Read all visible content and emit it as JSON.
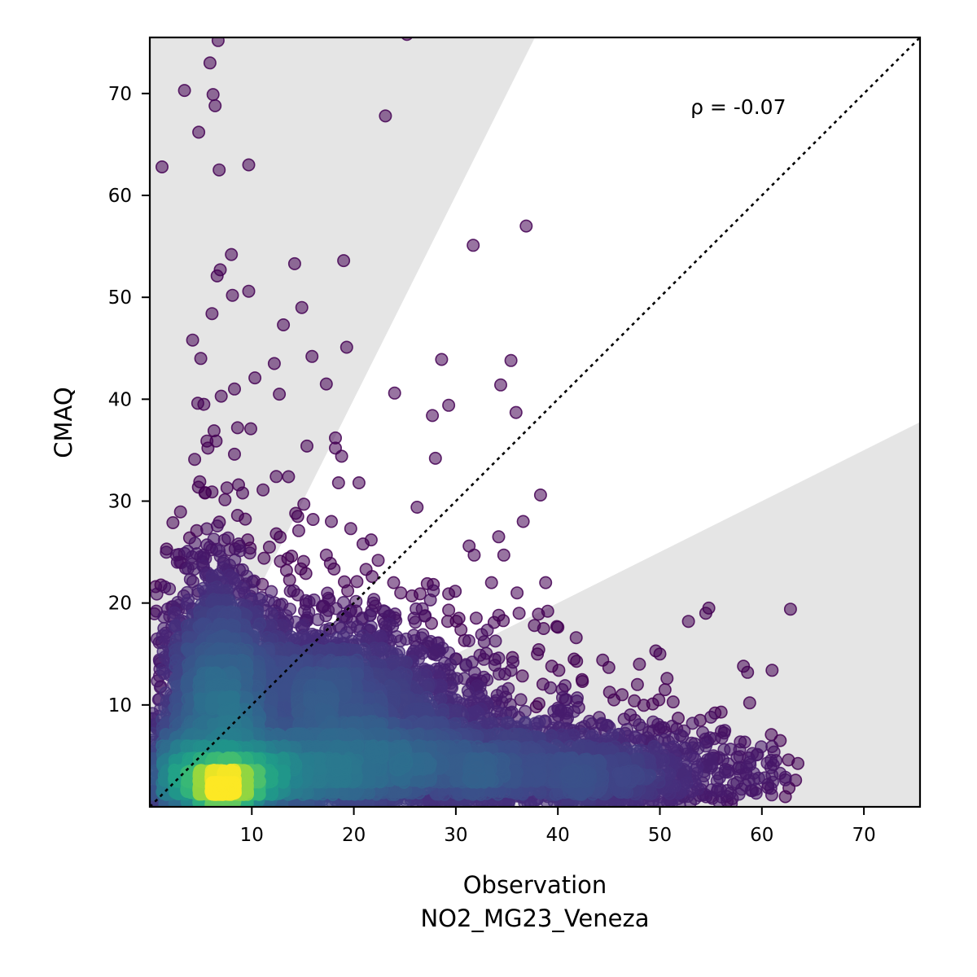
{
  "chart_data": {
    "type": "scatter",
    "xlabel": "Observation",
    "xlabel_sub": "NO2_MG23_Veneza",
    "ylabel": "CMAQ",
    "xlim": [
      0,
      75.5
    ],
    "ylim": [
      0,
      75.5
    ],
    "xticks": [
      10,
      20,
      30,
      40,
      50,
      60,
      70
    ],
    "yticks": [
      10,
      20,
      30,
      40,
      50,
      60,
      70
    ],
    "annotation": "ρ = -0.07",
    "annotation_pos": [
      53,
      68
    ],
    "identity_line": true,
    "shaded_band_factor": 2,
    "colormap": "viridis",
    "point_color": "#440154",
    "shade_color": "#e5e5e5",
    "outlier_points": [
      [
        1.2,
        62.8
      ],
      [
        3.4,
        70.3
      ],
      [
        4.8,
        66.2
      ],
      [
        5.9,
        73.0
      ],
      [
        6.2,
        69.9
      ],
      [
        6.4,
        68.8
      ],
      [
        6.7,
        75.2
      ],
      [
        6.8,
        62.5
      ],
      [
        9.7,
        63.0
      ],
      [
        23.1,
        67.8
      ],
      [
        25.2,
        75.8
      ],
      [
        8.0,
        54.2
      ],
      [
        6.9,
        52.7
      ],
      [
        6.6,
        52.1
      ],
      [
        9.7,
        50.6
      ],
      [
        8.1,
        50.2
      ],
      [
        6.1,
        48.4
      ],
      [
        4.2,
        45.8
      ],
      [
        5.0,
        44.0
      ],
      [
        14.2,
        53.3
      ],
      [
        14.9,
        49.0
      ],
      [
        13.1,
        47.3
      ],
      [
        19.0,
        53.6
      ],
      [
        19.3,
        45.1
      ],
      [
        15.9,
        44.2
      ],
      [
        12.2,
        43.5
      ],
      [
        10.3,
        42.1
      ],
      [
        17.3,
        41.5
      ],
      [
        12.7,
        40.5
      ],
      [
        7.0,
        40.3
      ],
      [
        8.3,
        41.0
      ],
      [
        4.7,
        39.6
      ],
      [
        5.3,
        39.5
      ],
      [
        9.9,
        37.1
      ],
      [
        8.6,
        37.2
      ],
      [
        6.3,
        36.9
      ],
      [
        5.6,
        35.9
      ],
      [
        6.5,
        35.9
      ],
      [
        5.7,
        35.2
      ],
      [
        8.3,
        34.6
      ],
      [
        4.4,
        34.1
      ],
      [
        15.4,
        35.4
      ],
      [
        18.2,
        36.2
      ],
      [
        18.2,
        35.2
      ],
      [
        18.8,
        34.4
      ],
      [
        14.5,
        28.5
      ],
      [
        13.6,
        32.4
      ],
      [
        4.9,
        31.9
      ],
      [
        8.7,
        31.6
      ],
      [
        9.1,
        30.8
      ],
      [
        11.1,
        31.1
      ],
      [
        5.4,
        30.8
      ],
      [
        6.1,
        30.9
      ],
      [
        18.5,
        31.8
      ],
      [
        20.5,
        31.8
      ],
      [
        15.1,
        29.7
      ],
      [
        14.3,
        28.8
      ],
      [
        16.0,
        28.2
      ],
      [
        17.8,
        28.0
      ],
      [
        19.7,
        27.3
      ],
      [
        12.4,
        26.8
      ],
      [
        14.6,
        27.1
      ],
      [
        13.9,
        24.6
      ],
      [
        11.2,
        24.4
      ],
      [
        12.8,
        24.1
      ],
      [
        2.7,
        24.0
      ],
      [
        3.9,
        26.4
      ],
      [
        4.6,
        27.1
      ],
      [
        5.6,
        25.7
      ],
      [
        6.8,
        25.1
      ],
      [
        9.6,
        26.2
      ],
      [
        8.6,
        28.6
      ],
      [
        17.3,
        24.7
      ],
      [
        17.7,
        23.9
      ],
      [
        21.7,
        26.2
      ],
      [
        21.2,
        23.3
      ],
      [
        21.8,
        22.6
      ],
      [
        20.3,
        22.1
      ],
      [
        19.4,
        21.2
      ],
      [
        23.9,
        22.0
      ],
      [
        24.6,
        21.0
      ],
      [
        25.7,
        20.7
      ],
      [
        26.5,
        20.9
      ],
      [
        27.2,
        21.9
      ],
      [
        27.8,
        21.2
      ],
      [
        29.3,
        20.9
      ],
      [
        27.5,
        20.3
      ],
      [
        22.1,
        19.7
      ],
      [
        23.0,
        18.0
      ],
      [
        20.6,
        17.3
      ],
      [
        19.3,
        17.1
      ],
      [
        22.4,
        16.6
      ],
      [
        24.2,
        16.7
      ],
      [
        25.9,
        18.5
      ],
      [
        29.3,
        19.3
      ],
      [
        30.3,
        18.5
      ],
      [
        29.2,
        18.2
      ],
      [
        27.3,
        16.1
      ],
      [
        26.5,
        15.3
      ],
      [
        28.3,
        16.1
      ],
      [
        28.9,
        14.1
      ],
      [
        24.0,
        40.6
      ],
      [
        26.2,
        29.4
      ],
      [
        27.7,
        38.4
      ],
      [
        29.3,
        39.4
      ],
      [
        28.6,
        43.9
      ],
      [
        28.0,
        34.2
      ],
      [
        31.7,
        55.1
      ],
      [
        36.9,
        57.0
      ],
      [
        35.4,
        43.8
      ],
      [
        34.4,
        41.4
      ],
      [
        35.9,
        38.7
      ],
      [
        31.3,
        25.6
      ],
      [
        31.8,
        24.7
      ],
      [
        34.2,
        26.5
      ],
      [
        34.7,
        24.7
      ],
      [
        33.5,
        22.0
      ],
      [
        36.6,
        28.0
      ],
      [
        38.3,
        30.6
      ],
      [
        36.0,
        21.0
      ],
      [
        36.2,
        19.0
      ],
      [
        38.1,
        18.9
      ],
      [
        39.0,
        19.2
      ],
      [
        37.7,
        17.8
      ],
      [
        38.6,
        17.5
      ],
      [
        39.9,
        17.7
      ],
      [
        38.8,
        22.0
      ],
      [
        30.0,
        14.5
      ],
      [
        31.6,
        14.2
      ],
      [
        34.2,
        14.6
      ],
      [
        35.6,
        14.2
      ],
      [
        38.0,
        15.0
      ],
      [
        39.4,
        13.8
      ],
      [
        40.1,
        13.4
      ],
      [
        41.6,
        14.5
      ],
      [
        41.8,
        16.6
      ],
      [
        42.4,
        12.3
      ],
      [
        40.7,
        11.9
      ],
      [
        44.4,
        14.4
      ],
      [
        45.5,
        10.5
      ],
      [
        46.3,
        11.0
      ],
      [
        47.5,
        10.4
      ],
      [
        46.5,
        8.6
      ],
      [
        48.0,
        14.0
      ],
      [
        47.8,
        12.0
      ],
      [
        49.6,
        15.3
      ],
      [
        50.0,
        15.0
      ],
      [
        50.7,
        12.6
      ],
      [
        50.5,
        11.5
      ],
      [
        49.3,
        10.1
      ],
      [
        49.9,
        10.5
      ],
      [
        51.3,
        10.3
      ],
      [
        51.8,
        8.7
      ],
      [
        52.8,
        18.2
      ],
      [
        54.5,
        19.0
      ],
      [
        54.8,
        19.5
      ],
      [
        54.2,
        7.3
      ],
      [
        53.2,
        8.2
      ],
      [
        55.0,
        8.8
      ],
      [
        55.4,
        9.2
      ],
      [
        56.0,
        9.3
      ],
      [
        56.3,
        5.6
      ],
      [
        58.2,
        13.8
      ],
      [
        58.6,
        13.2
      ],
      [
        58.8,
        10.2
      ],
      [
        58.7,
        4.8
      ],
      [
        57.9,
        3.1
      ],
      [
        61.0,
        13.4
      ],
      [
        61.8,
        6.5
      ],
      [
        62.3,
        2.9
      ],
      [
        62.6,
        4.6
      ],
      [
        62.8,
        19.4
      ],
      [
        61.0,
        3.1
      ],
      [
        60.6,
        2.2
      ],
      [
        59.4,
        1.7
      ],
      [
        56.6,
        1.6
      ],
      [
        62.3,
        1.0
      ],
      [
        58.4,
        2.1
      ],
      [
        55.1,
        4.0
      ],
      [
        52.2,
        6.9
      ],
      [
        51.0,
        4.6
      ],
      [
        44.6,
        7.5
      ],
      [
        43.1,
        8.4
      ],
      [
        45.6,
        5.9
      ],
      [
        41.9,
        10.7
      ],
      [
        20.9,
        25.8
      ],
      [
        16.1,
        20.3
      ],
      [
        14.1,
        21.2
      ],
      [
        13.4,
        23.2
      ],
      [
        15.3,
        22.9
      ],
      [
        17.6,
        20.3
      ]
    ],
    "clusters": [
      {
        "cx": 7.0,
        "cy": 1.8,
        "sx": 1.4,
        "sy": 0.8,
        "rot": 0,
        "n": 600
      },
      {
        "cx": 8.5,
        "cy": 2.5,
        "sx": 3.5,
        "sy": 1.6,
        "rot": 0,
        "n": 1200
      },
      {
        "cx": 14.0,
        "cy": 3.5,
        "sx": 8.0,
        "sy": 2.5,
        "rot": 0,
        "n": 1800
      },
      {
        "cx": 27.0,
        "cy": 3.8,
        "sx": 12.0,
        "sy": 2.8,
        "rot": 0,
        "n": 2200
      },
      {
        "cx": 42.0,
        "cy": 2.8,
        "sx": 9.0,
        "sy": 2.2,
        "rot": 0,
        "n": 1000
      },
      {
        "cx": 6.0,
        "cy": 9.0,
        "sx": 2.5,
        "sy": 5.0,
        "rot": 0,
        "n": 1100
      },
      {
        "cx": 6.5,
        "cy": 16.0,
        "sx": 2.8,
        "sy": 5.5,
        "rot": 0,
        "n": 600
      },
      {
        "cx": 14.0,
        "cy": 12.0,
        "sx": 6.0,
        "sy": 4.0,
        "rot": 0,
        "n": 1200
      },
      {
        "cx": 22.0,
        "cy": 10.0,
        "sx": 7.0,
        "sy": 3.5,
        "rot": 0,
        "n": 1000
      },
      {
        "cx": 2.5,
        "cy": 3.0,
        "sx": 1.5,
        "sy": 3.0,
        "rot": 0,
        "n": 500
      }
    ]
  }
}
